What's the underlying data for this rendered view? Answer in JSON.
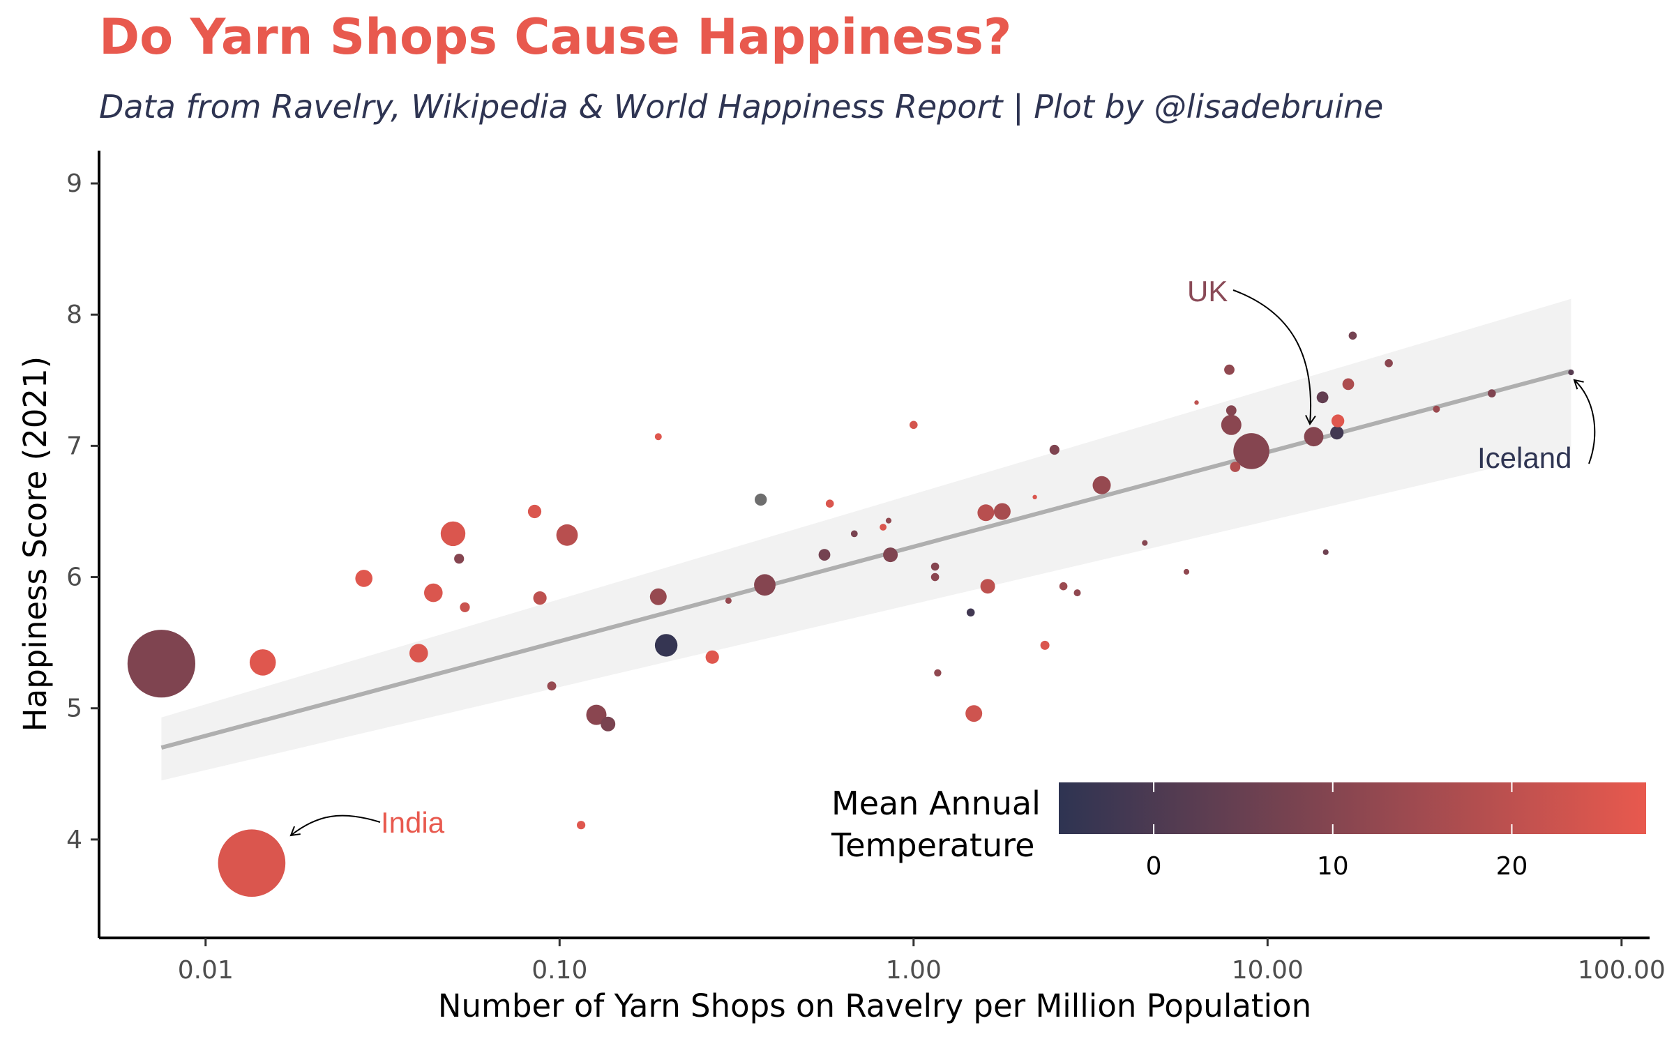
{
  "title": "Do Yarn Shops Cause Happiness?",
  "subtitle": "Data from Ravelry, Wikipedia & World Happiness Report | Plot by @lisadebruine",
  "colors": {
    "low": "#2E3452",
    "high": "#E8594E",
    "na": "#6E6E6E",
    "trend": "#AFAFAF",
    "band": "#F2F2F2"
  },
  "chart_data": {
    "type": "scatter",
    "title": "Do Yarn Shops Cause Happiness?",
    "subtitle": "Data from Ravelry, Wikipedia & World Happiness Report | Plot by @lisadebruine",
    "xlabel": "Number of Yarn Shops on Ravelry per Million Population",
    "ylabel": "Happiness Score (2021)",
    "x_scale": "log10",
    "xlim": [
      0.005,
      120
    ],
    "ylim": [
      3.25,
      9.25
    ],
    "x_ticks": [
      0.01,
      0.1,
      1,
      10,
      100
    ],
    "x_tick_labels": [
      "0.01",
      "0.10",
      "1.00",
      "10.00",
      "100.00"
    ],
    "y_ticks": [
      4,
      5,
      6,
      7,
      8,
      9
    ],
    "y_tick_labels": [
      "4",
      "5",
      "6",
      "7",
      "8",
      "9"
    ],
    "grid": false,
    "color_encoding": "Mean Annual Temperature",
    "size_encoding": "population (unlabeled)",
    "trend": {
      "type": "linear fit on log10(x)",
      "x_range": [
        0.0075,
        72
      ],
      "y_start": 4.7,
      "y_end": 7.57,
      "ci_low": [
        4.45,
        6.97
      ],
      "ci_high": [
        4.93,
        8.12
      ]
    },
    "legend": {
      "title_lines": [
        "Mean Annual",
        "Temperature"
      ],
      "type": "colorbar",
      "range": [
        -5.3,
        27.5
      ],
      "ticks": [
        0,
        10,
        20
      ],
      "tick_labels": [
        "0",
        "10",
        "20"
      ],
      "placement": "bottom-right"
    },
    "annotations": [
      {
        "text": "UK",
        "x": 13.5,
        "y": 7.07,
        "color": "#8A4A57"
      },
      {
        "text": "Iceland",
        "x": 72,
        "y": 7.56,
        "color": "#2E3452"
      },
      {
        "text": "India",
        "x": 0.0135,
        "y": 3.82,
        "color": "#E8594E"
      }
    ],
    "points": [
      {
        "x": 0.0075,
        "y": 5.34,
        "temp": 9,
        "size": 1400
      },
      {
        "x": 0.0135,
        "y": 3.82,
        "temp": 25,
        "size": 1380
      },
      {
        "x": 0.0145,
        "y": 5.35,
        "temp": 26,
        "size": 210
      },
      {
        "x": 0.028,
        "y": 5.99,
        "temp": 26,
        "size": 90
      },
      {
        "x": 0.04,
        "y": 5.42,
        "temp": 25,
        "size": 105
      },
      {
        "x": 0.044,
        "y": 5.88,
        "temp": 25,
        "size": 105
      },
      {
        "x": 0.05,
        "y": 6.33,
        "temp": 25,
        "size": 185
      },
      {
        "x": 0.052,
        "y": 6.14,
        "temp": 10,
        "size": 30
      },
      {
        "x": 0.054,
        "y": 5.77,
        "temp": 22,
        "size": 30
      },
      {
        "x": 0.085,
        "y": 6.5,
        "temp": 25,
        "size": 55
      },
      {
        "x": 0.088,
        "y": 5.84,
        "temp": 20,
        "size": 55
      },
      {
        "x": 0.095,
        "y": 5.17,
        "temp": 13,
        "size": 25
      },
      {
        "x": 0.105,
        "y": 6.32,
        "temp": 19,
        "size": 140
      },
      {
        "x": 0.115,
        "y": 4.11,
        "temp": 26,
        "size": 22
      },
      {
        "x": 0.127,
        "y": 4.95,
        "temp": 11,
        "size": 125
      },
      {
        "x": 0.137,
        "y": 4.88,
        "temp": 8,
        "size": 65
      },
      {
        "x": 0.19,
        "y": 7.07,
        "temp": 26,
        "size": 15
      },
      {
        "x": 0.19,
        "y": 5.85,
        "temp": 13,
        "size": 85
      },
      {
        "x": 0.2,
        "y": 5.48,
        "temp": -4,
        "size": 155
      },
      {
        "x": 0.27,
        "y": 5.39,
        "temp": 26,
        "size": 55
      },
      {
        "x": 0.3,
        "y": 5.82,
        "temp": 13,
        "size": 12
      },
      {
        "x": 0.37,
        "y": 6.59,
        "temp": null,
        "size": 45
      },
      {
        "x": 0.38,
        "y": 5.94,
        "temp": 10,
        "size": 140
      },
      {
        "x": 0.58,
        "y": 6.56,
        "temp": 25,
        "size": 20
      },
      {
        "x": 0.56,
        "y": 6.17,
        "temp": 7,
        "size": 42
      },
      {
        "x": 0.68,
        "y": 6.33,
        "temp": 8,
        "size": 14
      },
      {
        "x": 0.82,
        "y": 6.38,
        "temp": 25,
        "size": 14
      },
      {
        "x": 0.85,
        "y": 6.43,
        "temp": 12,
        "size": 10
      },
      {
        "x": 0.86,
        "y": 6.17,
        "temp": 9,
        "size": 65
      },
      {
        "x": 1.0,
        "y": 7.16,
        "temp": 24,
        "size": 20
      },
      {
        "x": 1.15,
        "y": 6.08,
        "temp": 10,
        "size": 20
      },
      {
        "x": 1.15,
        "y": 6.0,
        "temp": 11,
        "size": 20
      },
      {
        "x": 1.17,
        "y": 5.27,
        "temp": 12,
        "size": 16
      },
      {
        "x": 1.45,
        "y": 5.73,
        "temp": -2,
        "size": 20
      },
      {
        "x": 1.48,
        "y": 4.96,
        "temp": 23,
        "size": 85
      },
      {
        "x": 1.6,
        "y": 6.49,
        "temp": 19,
        "size": 85
      },
      {
        "x": 1.62,
        "y": 5.93,
        "temp": 20,
        "size": 65
      },
      {
        "x": 1.78,
        "y": 6.5,
        "temp": 16,
        "size": 85
      },
      {
        "x": 2.2,
        "y": 6.61,
        "temp": 25,
        "size": 6
      },
      {
        "x": 2.35,
        "y": 5.48,
        "temp": 25,
        "size": 25
      },
      {
        "x": 2.5,
        "y": 6.97,
        "temp": 9,
        "size": 30
      },
      {
        "x": 2.65,
        "y": 5.93,
        "temp": 14,
        "size": 20
      },
      {
        "x": 2.9,
        "y": 5.88,
        "temp": 12,
        "size": 15
      },
      {
        "x": 3.4,
        "y": 6.7,
        "temp": 13,
        "size": 100
      },
      {
        "x": 4.5,
        "y": 6.26,
        "temp": 10,
        "size": 10
      },
      {
        "x": 5.9,
        "y": 6.04,
        "temp": 12,
        "size": 10
      },
      {
        "x": 6.3,
        "y": 7.33,
        "temp": 20,
        "size": 6
      },
      {
        "x": 7.8,
        "y": 7.58,
        "temp": 12,
        "size": 32
      },
      {
        "x": 7.9,
        "y": 7.27,
        "temp": 10,
        "size": 32
      },
      {
        "x": 7.9,
        "y": 7.16,
        "temp": 11,
        "size": 125
      },
      {
        "x": 8.1,
        "y": 6.84,
        "temp": 18,
        "size": 32
      },
      {
        "x": 9.0,
        "y": 6.96,
        "temp": 10,
        "size": 395
      },
      {
        "x": 13.5,
        "y": 7.07,
        "temp": 10,
        "size": 115
      },
      {
        "x": 14.3,
        "y": 7.37,
        "temp": 4,
        "size": 42
      },
      {
        "x": 14.6,
        "y": 6.19,
        "temp": 6,
        "size": 10
      },
      {
        "x": 15.8,
        "y": 7.19,
        "temp": 26,
        "size": 50
      },
      {
        "x": 15.7,
        "y": 7.1,
        "temp": -2,
        "size": 55
      },
      {
        "x": 16.9,
        "y": 7.47,
        "temp": 17,
        "size": 42
      },
      {
        "x": 17.4,
        "y": 7.84,
        "temp": 7,
        "size": 20
      },
      {
        "x": 22,
        "y": 7.63,
        "temp": 11,
        "size": 20
      },
      {
        "x": 30,
        "y": 7.28,
        "temp": 14,
        "size": 15
      },
      {
        "x": 43,
        "y": 7.4,
        "temp": 9,
        "size": 20
      },
      {
        "x": 72,
        "y": 7.56,
        "temp": 2,
        "size": 10
      }
    ]
  }
}
